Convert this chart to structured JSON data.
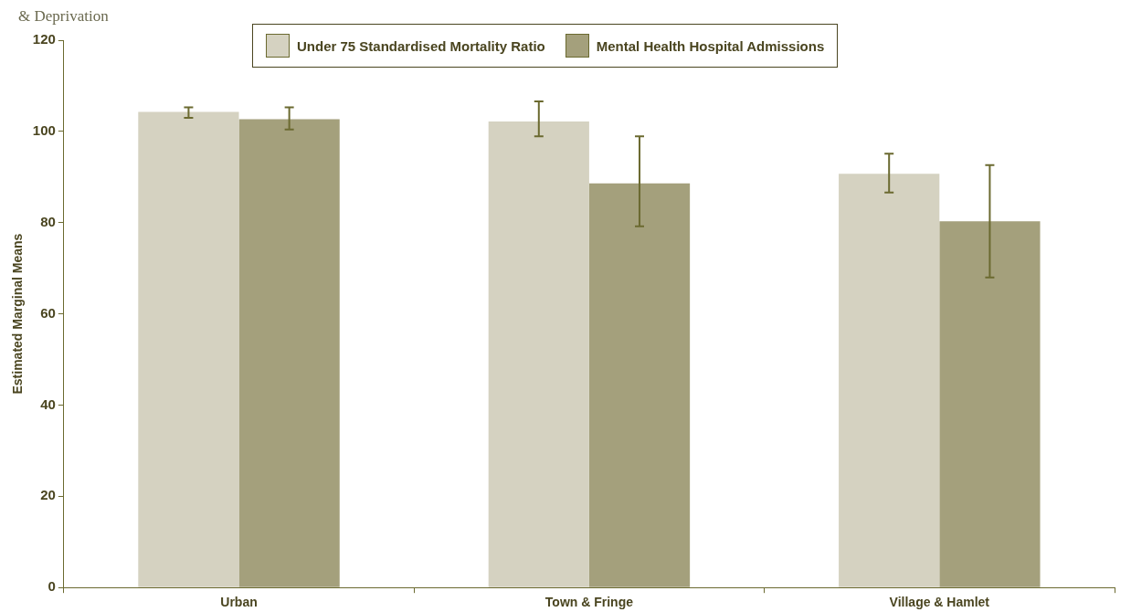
{
  "chart_data": {
    "type": "bar",
    "title": "& Deprivation",
    "ylabel": "Estimated Marginal Means",
    "categories": [
      "Urban",
      "Town & Fringe",
      "Village & Hamlet"
    ],
    "series": [
      {
        "name": "Under 75 Standardised Mortality Ratio",
        "color": "#d5d2c1",
        "values": [
          104.3,
          102.2,
          90.7
        ],
        "errors": [
          [
            103.0,
            105.3
          ],
          [
            98.9,
            106.6
          ],
          [
            86.6,
            95.1
          ]
        ]
      },
      {
        "name": "Mental Health Hospital Admissions",
        "color": "#a4a07c",
        "values": [
          102.7,
          88.6,
          80.3
        ],
        "errors": [
          [
            100.4,
            105.3
          ],
          [
            79.2,
            98.9
          ],
          [
            68.0,
            92.6
          ]
        ]
      }
    ],
    "ylim": [
      0,
      120
    ],
    "yticks": [
      0,
      20,
      40,
      60,
      80,
      100,
      120
    ],
    "grid": false,
    "legend": "top"
  }
}
